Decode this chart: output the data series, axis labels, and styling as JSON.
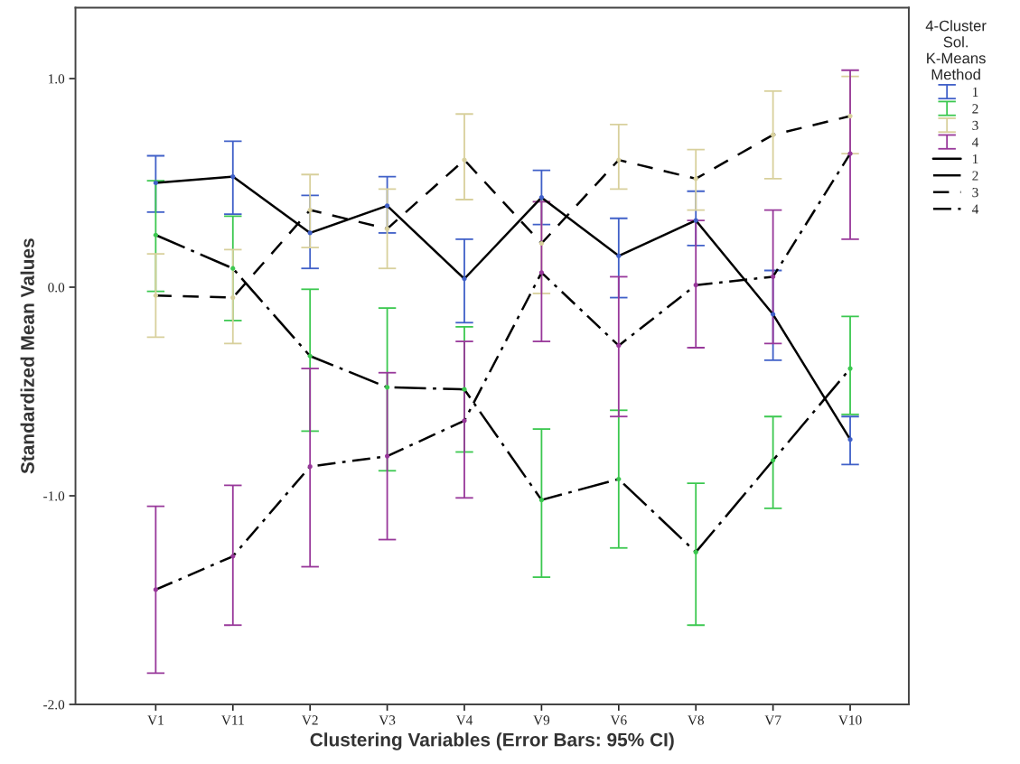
{
  "chart_data": {
    "type": "line",
    "xlabel": "Clustering Variables (Error Bars: 95% CI)",
    "ylabel": "Standardized Mean Values",
    "legend_title": "4-Cluster Sol. K-Means Method",
    "categories": [
      "V1",
      "V11",
      "V2",
      "V3",
      "V4",
      "V9",
      "V6",
      "V8",
      "V7",
      "V10"
    ],
    "ylim": [
      -2.0,
      1.34
    ],
    "yticks": [
      {
        "value": -2,
        "label": "-2.0"
      },
      {
        "value": -1,
        "label": "-1.0"
      },
      {
        "value": 0,
        "label": "0.0"
      },
      {
        "value": 1,
        "label": "1.0"
      }
    ],
    "grid": false,
    "legend": "right",
    "marker": "none",
    "series": [
      {
        "name": "1",
        "type": "scatter",
        "marker": "circle",
        "color": "#4060c8",
        "values": [
          0.5,
          0.53,
          0.26,
          0.39,
          0.04,
          0.43,
          0.15,
          0.32,
          -0.13,
          -0.73
        ],
        "errors": [
          [
            0.36,
            0.63
          ],
          [
            0.35,
            0.7
          ],
          [
            0.09,
            0.44
          ],
          [
            0.26,
            0.53
          ],
          [
            -0.17,
            0.23
          ],
          [
            0.3,
            0.56
          ],
          [
            -0.05,
            0.33
          ],
          [
            0.2,
            0.46
          ],
          [
            -0.35,
            0.08
          ],
          [
            -0.85,
            -0.62
          ]
        ]
      },
      {
        "name": "2",
        "type": "scatter",
        "marker": "circle",
        "color": "#3cc850",
        "values": [
          0.25,
          0.09,
          -0.33,
          -0.48,
          -0.49,
          -1.02,
          -0.92,
          -1.27,
          -0.83,
          -0.39
        ],
        "errors": [
          [
            -0.02,
            0.51
          ],
          [
            -0.16,
            0.34
          ],
          [
            -0.69,
            -0.01
          ],
          [
            -0.88,
            -0.1
          ],
          [
            -0.79,
            -0.19
          ],
          [
            -1.39,
            -0.68
          ],
          [
            -1.25,
            -0.59
          ],
          [
            -1.62,
            -0.94
          ],
          [
            -1.06,
            -0.62
          ],
          [
            -0.61,
            -0.14
          ]
        ]
      },
      {
        "name": "3",
        "type": "scatter",
        "marker": "circle",
        "color": "#d8d09c",
        "values": [
          -0.04,
          -0.05,
          0.37,
          0.28,
          0.61,
          0.21,
          0.61,
          0.52,
          0.73,
          0.82
        ],
        "errors": [
          [
            -0.24,
            0.16
          ],
          [
            -0.27,
            0.18
          ],
          [
            0.19,
            0.54
          ],
          [
            0.09,
            0.47
          ],
          [
            0.42,
            0.83
          ],
          [
            -0.03,
            0.41
          ],
          [
            0.47,
            0.78
          ],
          [
            0.37,
            0.66
          ],
          [
            0.52,
            0.94
          ],
          [
            0.64,
            1.01
          ]
        ]
      },
      {
        "name": "4",
        "type": "scatter",
        "marker": "circle",
        "color": "#98389a",
        "values": [
          -1.45,
          -1.29,
          -0.86,
          -0.81,
          -0.64,
          0.07,
          -0.28,
          0.01,
          0.05,
          0.64
        ],
        "errors": [
          [
            -1.85,
            -1.05
          ],
          [
            -1.62,
            -0.95
          ],
          [
            -1.34,
            -0.39
          ],
          [
            -1.21,
            -0.41
          ],
          [
            -1.01,
            -0.26
          ],
          [
            -0.26,
            0.41
          ],
          [
            -0.62,
            0.05
          ],
          [
            -0.29,
            0.32
          ],
          [
            -0.27,
            0.37
          ],
          [
            0.23,
            1.04
          ]
        ]
      },
      {
        "name": "1",
        "color": "#000000",
        "line_style": "solid",
        "values": [
          0.5,
          0.53,
          0.26,
          0.39,
          0.04,
          0.43,
          0.15,
          0.32,
          -0.13,
          -0.73
        ]
      },
      {
        "name": "2",
        "color": "#000000",
        "line_style": "longdashdot",
        "values": [
          0.25,
          0.09,
          -0.33,
          -0.48,
          -0.49,
          -1.02,
          -0.92,
          -1.27,
          -0.83,
          -0.39
        ]
      },
      {
        "name": "3",
        "color": "#000000",
        "line_style": "dashed",
        "values": [
          -0.04,
          -0.05,
          0.37,
          0.28,
          0.61,
          0.21,
          0.61,
          0.52,
          0.73,
          0.82
        ]
      },
      {
        "name": "4",
        "color": "#000000",
        "line_style": "dashdot",
        "values": [
          -1.45,
          -1.29,
          -0.86,
          -0.81,
          -0.64,
          0.07,
          -0.28,
          0.01,
          0.05,
          0.64
        ]
      }
    ]
  }
}
